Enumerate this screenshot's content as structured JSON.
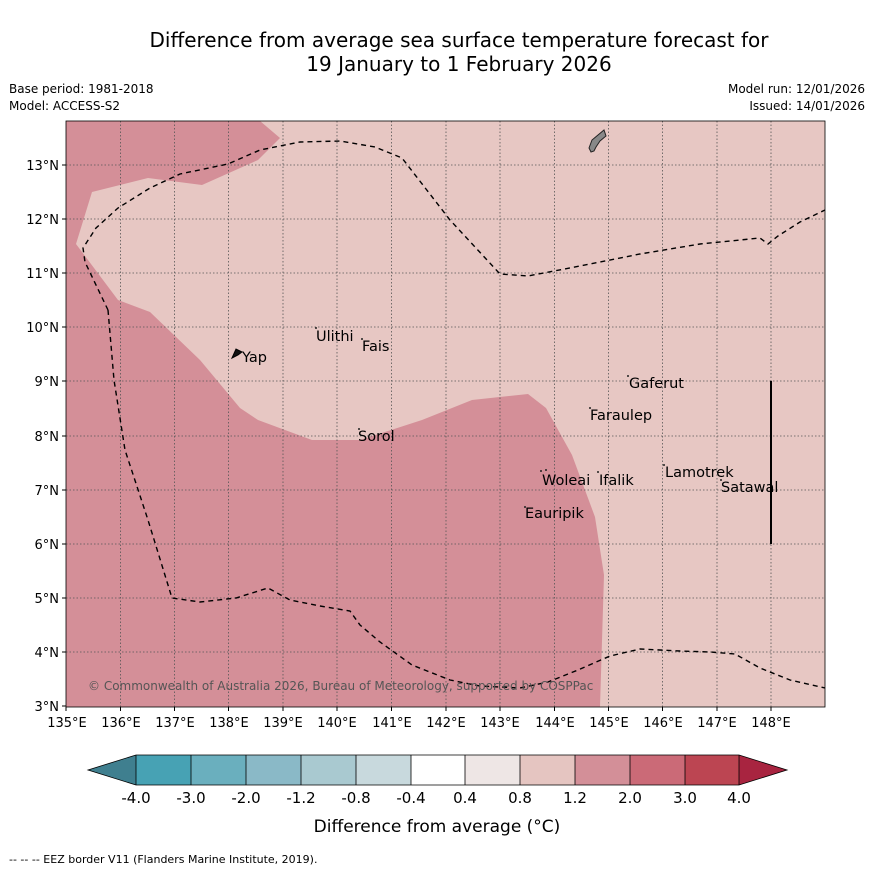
{
  "title": {
    "line1": "Difference from average sea surface temperature forecast for",
    "line2": "19 January to 1 February 2026"
  },
  "meta_left": {
    "base_period": "Base period: 1981-2018",
    "model": "Model: ACCESS-S2"
  },
  "meta_right": {
    "model_run": "Model run: 12/01/2026",
    "issued": "Issued: 14/01/2026"
  },
  "map": {
    "lon_range": [
      135,
      149
    ],
    "lat_range": [
      3,
      13.8
    ],
    "x_ticks": [
      "135°E",
      "136°E",
      "137°E",
      "138°E",
      "139°E",
      "140°E",
      "141°E",
      "142°E",
      "143°E",
      "144°E",
      "145°E",
      "146°E",
      "147°E",
      "148°E"
    ],
    "y_ticks": [
      "3°N",
      "4°N",
      "5°N",
      "6°N",
      "7°N",
      "8°N",
      "9°N",
      "10°N",
      "11°N",
      "12°N",
      "13°N"
    ],
    "copyright": "© Commonwealth of Australia 2026, Bureau of Meteorology, supported by COSPPac",
    "places": [
      {
        "name": "Yap",
        "lon": 138.2,
        "lat": 9.5
      },
      {
        "name": "Ulithi",
        "lon": 139.65,
        "lat": 9.9
      },
      {
        "name": "Fais",
        "lon": 140.4,
        "lat": 9.7
      },
      {
        "name": "Sorol",
        "lon": 140.35,
        "lat": 8.05
      },
      {
        "name": "Gaferut",
        "lon": 145.3,
        "lat": 9.1
      },
      {
        "name": "Faraulep",
        "lon": 144.6,
        "lat": 8.5
      },
      {
        "name": "Woleai",
        "lon": 143.9,
        "lat": 7.3
      },
      {
        "name": "Ifalik",
        "lon": 144.45,
        "lat": 7.3
      },
      {
        "name": "Lamotrek",
        "lon": 146.0,
        "lat": 7.45
      },
      {
        "name": "Satawal",
        "lon": 147.05,
        "lat": 7.2
      },
      {
        "name": "Eauripik",
        "lon": 143.45,
        "lat": 6.65
      }
    ]
  },
  "colorbar": {
    "labels": [
      "-4.0",
      "-3.0",
      "-2.0",
      "-1.2",
      "-0.8",
      "-0.4",
      "0.4",
      "0.8",
      "1.2",
      "2.0",
      "3.0",
      "4.0"
    ],
    "colors": [
      "#3f7f8f",
      "#47a2b4",
      "#6aafbe",
      "#8ab9c7",
      "#a9c9d0",
      "#c8d9dd",
      "#ffffff",
      "#eee6e5",
      "#e5c5c1",
      "#d38f98",
      "#cb6a77",
      "#bc4552",
      "#a82440"
    ],
    "title": "Difference from average (°C)"
  },
  "footnote": "--  --  -- EEZ border V11 (Flanders Marine Institute, 2019)."
}
